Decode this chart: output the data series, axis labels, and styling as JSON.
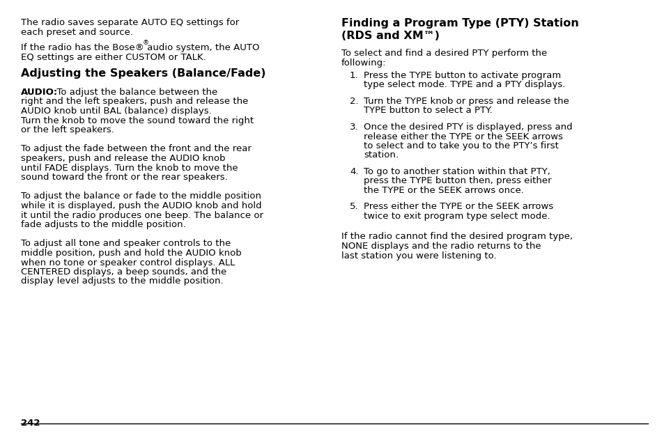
{
  "background_color": "#ffffff",
  "page_number": "242",
  "left_column": {
    "intro_lines": [
      "The radio saves separate AUTO EQ settings for",
      "each preset and source."
    ],
    "bose_lines": [
      "If the radio has the Bose® audio system, the AUTO",
      "EQ settings are either CUSTOM or TALK."
    ],
    "section_heading": "Adjusting the Speakers (Balance/Fade)",
    "paragraphs": [
      {
        "bold_start": "AUDIO:",
        "text": "  To adjust the balance between the\nright and the left speakers, push and release the\nAUDIO knob until BAL (balance) displays.\nTurn the knob to move the sound toward the right\nor the left speakers."
      },
      {
        "bold_start": "",
        "text": "To adjust the fade between the front and the rear\nspeakers, push and release the AUDIO knob\nuntil FADE displays. Turn the knob to move the\nsound toward the front or the rear speakers."
      },
      {
        "bold_start": "",
        "text": "To adjust the balance or fade to the middle position\nwhile it is displayed, push the AUDIO knob and hold\nit until the radio produces one beep. The balance or\nfade adjusts to the middle position."
      },
      {
        "bold_start": "",
        "text": "To adjust all tone and speaker controls to the\nmiddle position, push and hold the AUDIO knob\nwhen no tone or speaker control displays. ALL\nCENTERED displays, a beep sounds, and the\ndisplay level adjusts to the middle position."
      }
    ]
  },
  "right_column": {
    "section_heading_line1": "Finding a Program Type (PTY) Station",
    "section_heading_line2": "(RDS and XM™)",
    "intro_lines": [
      "To select and find a desired PTY perform the",
      "following:"
    ],
    "numbered_items": [
      {
        "number": "1.",
        "lines": [
          "Press the TYPE button to activate program",
          "type select mode. TYPE and a PTY displays."
        ]
      },
      {
        "number": "2.",
        "lines": [
          "Turn the TYPE knob or press and release the",
          "TYPE button to select a PTY."
        ]
      },
      {
        "number": "3.",
        "lines": [
          "Once the desired PTY is displayed, press and",
          "release either the TYPE or the SEEK arrows",
          "to select and to take you to the PTY’s first",
          "station."
        ]
      },
      {
        "number": "4.",
        "lines": [
          "To go to another station within that PTY,",
          "press the TYPE button then, press either",
          "the TYPE or the SEEK arrows once."
        ]
      },
      {
        "number": "5.",
        "lines": [
          "Press either the TYPE or the SEEK arrows",
          "twice to exit program type select mode."
        ]
      }
    ],
    "footer_lines": [
      "If the radio cannot find the desired program type,",
      "NONE displays and the radio returns to the",
      "last station you were listening to."
    ]
  },
  "font_size_body": 9.5,
  "font_size_heading": 11.5,
  "text_color": "#000000",
  "line_color": "#000000"
}
